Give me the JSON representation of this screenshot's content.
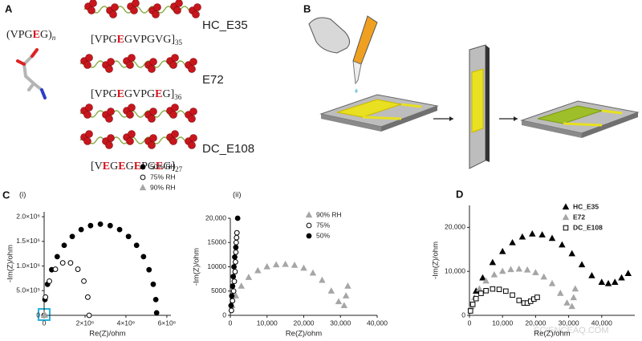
{
  "figure": {
    "labels": [
      "A",
      "B",
      "C",
      "D"
    ],
    "formula": {
      "parts": [
        "(VPG",
        "E",
        "G)"
      ],
      "subscript": "n"
    },
    "constructs": [
      {
        "name": "HC_E35",
        "sequence": {
          "parts": [
            "[VPG",
            "E",
            "GVPGVG]"
          ],
          "subscript": "35"
        }
      },
      {
        "name": "E72",
        "sequence": {
          "parts": [
            "[VPG",
            "E",
            "GVPG",
            "E",
            "G]"
          ],
          "subscript": "36"
        }
      },
      {
        "name": "DC_E108",
        "sequence": {
          "parts": [
            "[V",
            "E",
            "G",
            "E",
            "G",
            "E",
            "PG",
            "E",
            "G]"
          ],
          "subscript": "27"
        }
      }
    ],
    "watermark": "SCIENCEAQ.COM"
  },
  "chart_data": [
    {
      "type": "scatter",
      "title": "(i)",
      "x_label": "Re(Z)/ohm",
      "y_label": "-Im(Z)/ohm",
      "xlim": [
        0,
        6200000
      ],
      "ylim": [
        0,
        2100000
      ],
      "xticks": [
        0,
        {
          "value": 2000000,
          "label": "2×10⁶"
        },
        {
          "value": 4000000,
          "label": "4×10⁶"
        },
        {
          "value": 6000000,
          "label": "6×10⁶"
        }
      ],
      "yticks": [
        0,
        {
          "value": 500000,
          "label": "5.0×10⁵"
        },
        {
          "value": 1000000,
          "label": "1.0×10⁶"
        },
        {
          "value": 1500000,
          "label": "1.5×10⁶"
        },
        {
          "value": 2000000,
          "label": "2.0×10⁶"
        }
      ],
      "legend": "upper right",
      "series": [
        {
          "name": "50% RH",
          "color": "#000000",
          "marker": "circle",
          "filled": true,
          "x": [
            0,
            40000,
            165000,
            370000,
            640000,
            980000,
            1375000,
            1810000,
            2270000,
            2750000,
            3230000,
            3690000,
            4125000,
            4520000,
            4860000,
            5130000,
            5335000,
            5460000,
            5500000
          ],
          "y": [
            0,
            320000,
            630000,
            925000,
            1190000,
            1420000,
            1600000,
            1740000,
            1820000,
            1850000,
            1820000,
            1740000,
            1600000,
            1420000,
            1190000,
            925000,
            630000,
            320000,
            50000
          ]
        },
        {
          "name": "75% RH",
          "color": "#000000",
          "marker": "circle",
          "filled": false,
          "x": [
            0,
            66000,
            257000,
            550000,
            909000,
            1291000,
            1650000,
            1943000,
            2134000,
            2200000
          ],
          "y": [
            0,
            369000,
            694000,
            935000,
            1064000,
            1064000,
            935000,
            694000,
            369000,
            0
          ]
        },
        {
          "name": "90% RH",
          "color": "#a6a6a6",
          "marker": "triangle",
          "filled": true,
          "x": [
            0,
            10000,
            20000,
            30000
          ],
          "y": [
            0,
            5000,
            10000,
            5000
          ]
        }
      ]
    },
    {
      "type": "scatter",
      "title": "(ii)",
      "x_label": "Re(Z)/ohm",
      "y_label": "-Im(Z)/ohm",
      "xlim": [
        0,
        40000
      ],
      "ylim": [
        0,
        20000
      ],
      "xticks": [
        0,
        {
          "value": 10000,
          "label": "10,000"
        },
        {
          "value": 20000,
          "label": "20,000"
        },
        {
          "value": 30000,
          "label": "30,000"
        },
        {
          "value": 40000,
          "label": "40,000"
        }
      ],
      "yticks": [
        0,
        5000,
        10000,
        15000,
        {
          "value": 20000,
          "label": "20,000"
        }
      ],
      "legend": "upper right",
      "series": [
        {
          "name": "90% RH",
          "color": "#a6a6a6",
          "marker": "triangle",
          "filled": true,
          "x": [
            500,
            1500,
            3000,
            5000,
            7500,
            10000,
            12500,
            15000,
            17500,
            20000,
            22500,
            25000,
            27500,
            29500,
            31000,
            31500,
            32000
          ],
          "y": [
            2000,
            4000,
            6000,
            7800,
            9200,
            10000,
            10400,
            10500,
            10300,
            9700,
            8700,
            7200,
            5000,
            2800,
            2000,
            4000,
            6000
          ]
        },
        {
          "name": "75%",
          "color": "#000000",
          "marker": "circle",
          "filled": false,
          "x": [
            300,
            600,
            900,
            1100,
            1300,
            1400,
            1500,
            1600,
            1700,
            1800
          ],
          "y": [
            1000,
            3000,
            5000,
            7000,
            9000,
            11000,
            13000,
            15000,
            16000,
            17000
          ]
        },
        {
          "name": "50%",
          "color": "#000000",
          "marker": "circle",
          "filled": true,
          "x": [
            200,
            400,
            600,
            800,
            1000,
            1200,
            1500,
            2000
          ],
          "y": [
            2000,
            4000,
            6000,
            8000,
            10000,
            12000,
            14000,
            20000
          ]
        }
      ]
    },
    {
      "type": "scatter",
      "x_label": "Re(Z)/ohm",
      "y_label": "-Im(Z)/ohm",
      "xlim": [
        0,
        50000
      ],
      "ylim": [
        0,
        25000
      ],
      "xticks": [
        0,
        {
          "value": 10000,
          "label": "10,000"
        },
        {
          "value": 20000,
          "label": "20,000"
        },
        {
          "value": 30000,
          "label": "30,000"
        },
        {
          "value": 40000,
          "label": "40,000"
        }
      ],
      "yticks": [
        0,
        {
          "value": 10000,
          "label": "10,000"
        },
        {
          "value": 20000,
          "label": "20,000"
        }
      ],
      "legend": "upper right",
      "series": [
        {
          "name": "HC_E35",
          "color": "#000000",
          "marker": "triangle",
          "filled": true,
          "x": [
            500,
            2000,
            4000,
            7000,
            10000,
            13000,
            16000,
            19000,
            22000,
            25000,
            28000,
            31000,
            34000,
            37000,
            40000,
            42000,
            44000,
            46000,
            48000
          ],
          "y": [
            2000,
            5500,
            8500,
            12000,
            14500,
            16500,
            17800,
            18500,
            18300,
            17500,
            16000,
            14000,
            11500,
            9000,
            7500,
            7200,
            7500,
            8500,
            9500
          ]
        },
        {
          "name": "E72",
          "color": "#a6a6a6",
          "marker": "triangle",
          "filled": true,
          "x": [
            500,
            1500,
            3000,
            5000,
            7500,
            10000,
            12500,
            15000,
            17500,
            20000,
            22500,
            25000,
            27500,
            29500,
            31000,
            31500,
            32000
          ],
          "y": [
            2000,
            4000,
            6000,
            7800,
            9200,
            10000,
            10400,
            10500,
            10300,
            9700,
            8700,
            7200,
            5000,
            2800,
            2000,
            4000,
            6000
          ]
        },
        {
          "name": "DC_E108",
          "color": "#000000",
          "marker": "square",
          "filled": false,
          "x": [
            300,
            1000,
            2000,
            3500,
            5000,
            7000,
            9000,
            11000,
            13000,
            15000,
            16500,
            17500,
            18500,
            19500,
            20500
          ],
          "y": [
            1000,
            2500,
            3800,
            5000,
            5600,
            6000,
            5900,
            5500,
            4600,
            3400,
            2800,
            2800,
            3200,
            3700,
            4100
          ]
        }
      ]
    }
  ]
}
